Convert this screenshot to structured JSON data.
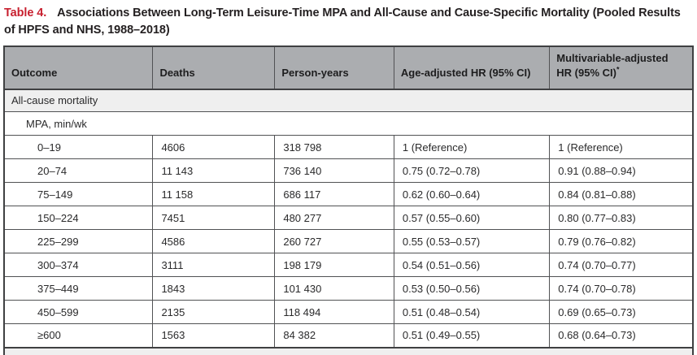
{
  "title": {
    "label": "Table 4.",
    "text": "Associations Between Long-Term Leisure-Time MPA and All-Cause and Cause-Specific Mortality (Pooled Results of HPFS and NHS, 1988–2018)"
  },
  "colors": {
    "title_accent": "#c8202f",
    "header_bg": "#abadb0",
    "section_row_bg": "#efefef",
    "border": "#515254",
    "text": "#2a2a2b"
  },
  "table": {
    "headers": [
      {
        "label": "Outcome"
      },
      {
        "label": "Deaths"
      },
      {
        "label": "Person-years"
      },
      {
        "label": "Age-adjusted HR (95% CI)"
      },
      {
        "label": "Multivariable-adjusted HR (95% CI)",
        "footnote_mark": "*"
      }
    ],
    "section_label": "All-cause mortality",
    "subsection_label": "MPA, min/wk",
    "rows": [
      {
        "outcome": "0–19",
        "deaths": "4606",
        "person_years": "318 798",
        "age_adjusted_hr": "1 (Reference)",
        "multivariable_adjusted_hr": "1 (Reference)"
      },
      {
        "outcome": "20–74",
        "deaths": "11 143",
        "person_years": "736 140",
        "age_adjusted_hr": "0.75 (0.72–0.78)",
        "multivariable_adjusted_hr": "0.91 (0.88–0.94)"
      },
      {
        "outcome": "75–149",
        "deaths": "11 158",
        "person_years": "686 117",
        "age_adjusted_hr": "0.62 (0.60–0.64)",
        "multivariable_adjusted_hr": "0.84 (0.81–0.88)"
      },
      {
        "outcome": "150–224",
        "deaths": "7451",
        "person_years": "480 277",
        "age_adjusted_hr": "0.57 (0.55–0.60)",
        "multivariable_adjusted_hr": "0.80 (0.77–0.83)"
      },
      {
        "outcome": "225–299",
        "deaths": "4586",
        "person_years": "260 727",
        "age_adjusted_hr": "0.55 (0.53–0.57)",
        "multivariable_adjusted_hr": "0.79 (0.76–0.82)"
      },
      {
        "outcome": "300–374",
        "deaths": "3111",
        "person_years": "198 179",
        "age_adjusted_hr": "0.54 (0.51–0.56)",
        "multivariable_adjusted_hr": "0.74 (0.70–0.77)"
      },
      {
        "outcome": "375–449",
        "deaths": "1843",
        "person_years": "101 430",
        "age_adjusted_hr": "0.53 (0.50–0.56)",
        "multivariable_adjusted_hr": "0.74 (0.70–0.78)"
      },
      {
        "outcome": "450–599",
        "deaths": "2135",
        "person_years": "118 494",
        "age_adjusted_hr": "0.51 (0.48–0.54)",
        "multivariable_adjusted_hr": "0.69 (0.65–0.73)"
      },
      {
        "outcome": "≥600",
        "deaths": "1563",
        "person_years": "84 382",
        "age_adjusted_hr": "0.51 (0.49–0.55)",
        "multivariable_adjusted_hr": "0.68 (0.64–0.73)"
      }
    ]
  }
}
